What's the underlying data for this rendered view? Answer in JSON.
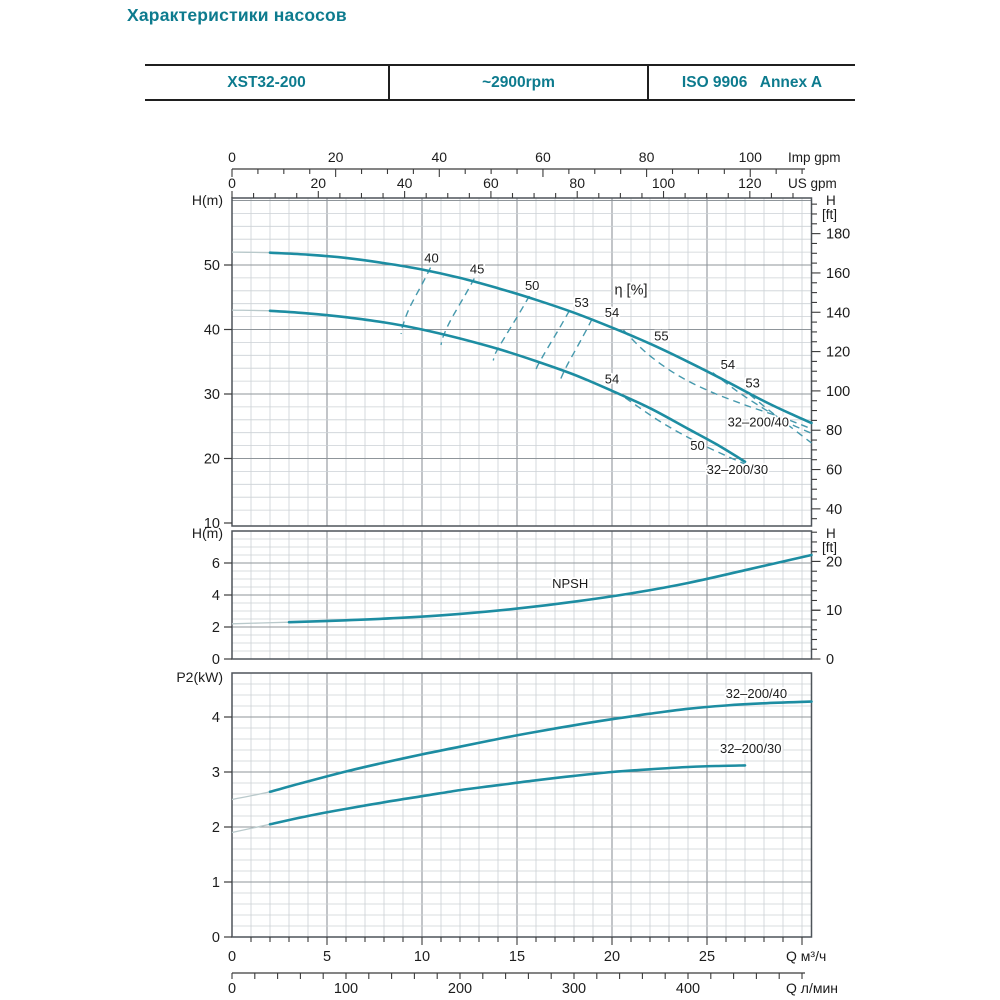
{
  "title": "Характеристики насосов",
  "header": {
    "model": "XST32-200",
    "speed": "~2900rpm",
    "standard": "ISO 9906   Annex A"
  },
  "colors": {
    "accent": "#0d7b8e",
    "curve": "#1d8da2",
    "curve_light": "#b9c9cb",
    "contour": "#4699ad",
    "grid_minor": "#ccd1d5",
    "grid_major": "#8f959a",
    "border": "#4e545a",
    "text": "#1c1c1c"
  },
  "axes": {
    "imp_gpm": {
      "unit": "Imp gpm",
      "major": [
        0,
        20,
        40,
        60,
        80,
        100
      ]
    },
    "us_gpm": {
      "unit": "US gpm",
      "major": [
        0,
        20,
        40,
        60,
        80,
        100,
        120
      ]
    },
    "q_m3h": {
      "unit": "Q  м³/ч",
      "major": [
        0,
        5,
        10,
        15,
        20,
        25
      ]
    },
    "q_lmin": {
      "unit": "Q  л/мин",
      "major": [
        0,
        100,
        200,
        300,
        400
      ]
    },
    "head": {
      "left_label": "H(m)",
      "right_label": [
        "H",
        "[ft]"
      ],
      "left_major": [
        10,
        20,
        30,
        40,
        50
      ],
      "right_major_ft": [
        40,
        60,
        80,
        100,
        120,
        140,
        160,
        180
      ]
    },
    "npsh": {
      "left_label": "H(m)",
      "right_label": [
        "H",
        "[ft]"
      ],
      "left_major": [
        0,
        2,
        4,
        6
      ],
      "right_major_ft": [
        0,
        10,
        20
      ]
    },
    "p2": {
      "left_label": "P2(kW)",
      "left_major": [
        0,
        1,
        2,
        3,
        4
      ]
    }
  },
  "chart_data": [
    {
      "id": "head_curves",
      "type": "line",
      "xlabel": "Q (м³/ч)",
      "ylabel": "H (m)",
      "x_range": [
        0,
        30.5
      ],
      "y_range": [
        9.5,
        60.4
      ],
      "series": [
        {
          "name": "32–200/40",
          "points": [
            [
              0,
              52
            ],
            [
              2,
              51.9
            ],
            [
              4,
              51.6
            ],
            [
              6,
              51.1
            ],
            [
              8,
              50.3
            ],
            [
              10,
              49.3
            ],
            [
              12,
              48
            ],
            [
              14,
              46.4
            ],
            [
              16,
              44.6
            ],
            [
              18,
              42.6
            ],
            [
              20,
              40.3
            ],
            [
              22,
              37.8
            ],
            [
              24,
              35
            ],
            [
              26,
              32
            ],
            [
              28,
              28.9
            ],
            [
              29.5,
              26.8
            ],
            [
              30.5,
              25.5
            ]
          ]
        },
        {
          "name": "32–200/30",
          "points": [
            [
              0,
              43
            ],
            [
              2,
              42.9
            ],
            [
              4,
              42.5
            ],
            [
              6,
              41.9
            ],
            [
              8,
              41.1
            ],
            [
              10,
              40
            ],
            [
              12,
              38.6
            ],
            [
              14,
              37
            ],
            [
              16,
              35.1
            ],
            [
              18,
              33
            ],
            [
              20,
              30.5
            ],
            [
              22,
              27.8
            ],
            [
              24,
              24.6
            ],
            [
              25.5,
              22.2
            ],
            [
              27,
              19.5
            ]
          ]
        }
      ],
      "efficiency_contours": [
        {
          "eta": 40,
          "points": [
            [
              10.45,
              49.6
            ],
            [
              10.05,
              47.3
            ],
            [
              9.35,
              43.4
            ],
            [
              9.0,
              40.7
            ],
            [
              8.9,
              39.3
            ]
          ]
        },
        {
          "eta": 45,
          "points": [
            [
              12.75,
              47.9
            ],
            [
              12.3,
              45.5
            ],
            [
              11.5,
              41.4
            ],
            [
              11.1,
              38.8
            ],
            [
              11.0,
              37.6
            ]
          ]
        },
        {
          "eta": 50,
          "points": [
            [
              15.65,
              45.2
            ],
            [
              15.1,
              42.4
            ],
            [
              14.25,
              38.3
            ],
            [
              13.85,
              36.2
            ],
            [
              13.75,
              35.2
            ]
          ]
        },
        {
          "eta": 53,
          "points": [
            [
              17.75,
              42.9
            ],
            [
              17.25,
              40.3
            ],
            [
              16.45,
              36.3
            ],
            [
              16.05,
              34.2
            ],
            [
              15.95,
              33.2
            ]
          ]
        },
        {
          "eta": 54,
          "points": [
            [
              18.95,
              41.6
            ],
            [
              18.45,
              38.8
            ],
            [
              17.7,
              34.8
            ],
            [
              17.35,
              32.7
            ],
            [
              17.25,
              31.7
            ]
          ]
        },
        {
          "eta": 55,
          "points": [
            [
              20.6,
              39.9
            ],
            [
              21.8,
              36.4
            ],
            [
              23.3,
              33.2
            ],
            [
              25.0,
              30.6
            ],
            [
              27.0,
              28.3
            ],
            [
              29.0,
              26.3
            ],
            [
              30.5,
              24.6
            ]
          ]
        },
        {
          "eta": 54,
          "points": [
            [
              25.3,
              33.3
            ],
            [
              26.6,
              30.4
            ],
            [
              28.0,
              27.7
            ],
            [
              29.3,
              25.5
            ],
            [
              30.5,
              23.9
            ]
          ]
        },
        {
          "eta": 53,
          "points": [
            [
              27.25,
              29.9
            ],
            [
              28.3,
              27.4
            ],
            [
              29.4,
              24.9
            ],
            [
              30.5,
              22.4
            ]
          ]
        },
        {
          "eta": 50,
          "points": [
            [
              20.7,
              29.4
            ],
            [
              22.5,
              25.8
            ],
            [
              24.3,
              22.8
            ],
            [
              26.1,
              20.3
            ],
            [
              27.6,
              18.4
            ]
          ]
        }
      ],
      "labels": [
        {
          "text": "40",
          "q": 10.5,
          "v": 50.4
        },
        {
          "text": "45",
          "q": 12.9,
          "v": 48.7
        },
        {
          "text": "50",
          "q": 15.8,
          "v": 46.1
        },
        {
          "text": "53",
          "q": 18.4,
          "v": 43.5
        },
        {
          "text": "54",
          "q": 20.0,
          "v": 41.9
        },
        {
          "text": "η [%]",
          "q": 21.0,
          "v": 45.4,
          "size": 14.5
        },
        {
          "text": "55",
          "q": 22.6,
          "v": 38.3
        },
        {
          "text": "54",
          "q": 20.0,
          "v": 31.6
        },
        {
          "text": "54",
          "q": 26.1,
          "v": 33.9
        },
        {
          "text": "53",
          "q": 27.4,
          "v": 31.0
        },
        {
          "text": "50",
          "q": 24.5,
          "v": 21.3
        },
        {
          "text": "32–200/40",
          "q": 27.7,
          "v": 25.0
        },
        {
          "text": "32–200/30",
          "q": 26.6,
          "v": 17.6
        }
      ]
    },
    {
      "id": "npsh",
      "type": "line",
      "xlabel": "Q (м³/ч)",
      "ylabel": "NPSH H(m)",
      "x_range": [
        0,
        30.5
      ],
      "y_range": [
        0,
        8
      ],
      "series": [
        {
          "name": "NPSH",
          "points": [
            [
              0,
              2.2
            ],
            [
              3,
              2.3
            ],
            [
              6,
              2.42
            ],
            [
              9,
              2.58
            ],
            [
              12,
              2.82
            ],
            [
              15,
              3.15
            ],
            [
              18,
              3.58
            ],
            [
              21,
              4.1
            ],
            [
              24,
              4.75
            ],
            [
              27,
              5.55
            ],
            [
              30.5,
              6.5
            ]
          ]
        }
      ],
      "labels": [
        {
          "text": "NPSH",
          "q": 17.8,
          "v": 4.45
        }
      ]
    },
    {
      "id": "p2",
      "type": "line",
      "xlabel": "Q (м³/ч)",
      "ylabel": "P2 (kW)",
      "x_range": [
        0,
        30.5
      ],
      "y_range": [
        0,
        4.8
      ],
      "series": [
        {
          "name": "32–200/40",
          "points": [
            [
              0,
              2.5
            ],
            [
              2,
              2.64
            ],
            [
              4,
              2.83
            ],
            [
              6,
              3.01
            ],
            [
              8,
              3.17
            ],
            [
              10,
              3.32
            ],
            [
              12,
              3.46
            ],
            [
              14,
              3.6
            ],
            [
              16,
              3.73
            ],
            [
              18,
              3.85
            ],
            [
              20,
              3.96
            ],
            [
              22,
              4.06
            ],
            [
              24,
              4.15
            ],
            [
              26,
              4.21
            ],
            [
              28,
              4.25
            ],
            [
              30.5,
              4.28
            ]
          ]
        },
        {
          "name": "32–200/30",
          "points": [
            [
              0,
              1.9
            ],
            [
              2,
              2.05
            ],
            [
              4,
              2.2
            ],
            [
              6,
              2.33
            ],
            [
              8,
              2.45
            ],
            [
              10,
              2.56
            ],
            [
              12,
              2.67
            ],
            [
              14,
              2.76
            ],
            [
              16,
              2.85
            ],
            [
              18,
              2.93
            ],
            [
              20,
              3.0
            ],
            [
              22,
              3.05
            ],
            [
              24,
              3.09
            ],
            [
              25.5,
              3.11
            ],
            [
              27,
              3.12
            ]
          ]
        }
      ],
      "labels": [
        {
          "text": "32–200/40",
          "q": 27.6,
          "v": 4.35
        },
        {
          "text": "32–200/30",
          "q": 27.3,
          "v": 3.35
        }
      ]
    }
  ]
}
